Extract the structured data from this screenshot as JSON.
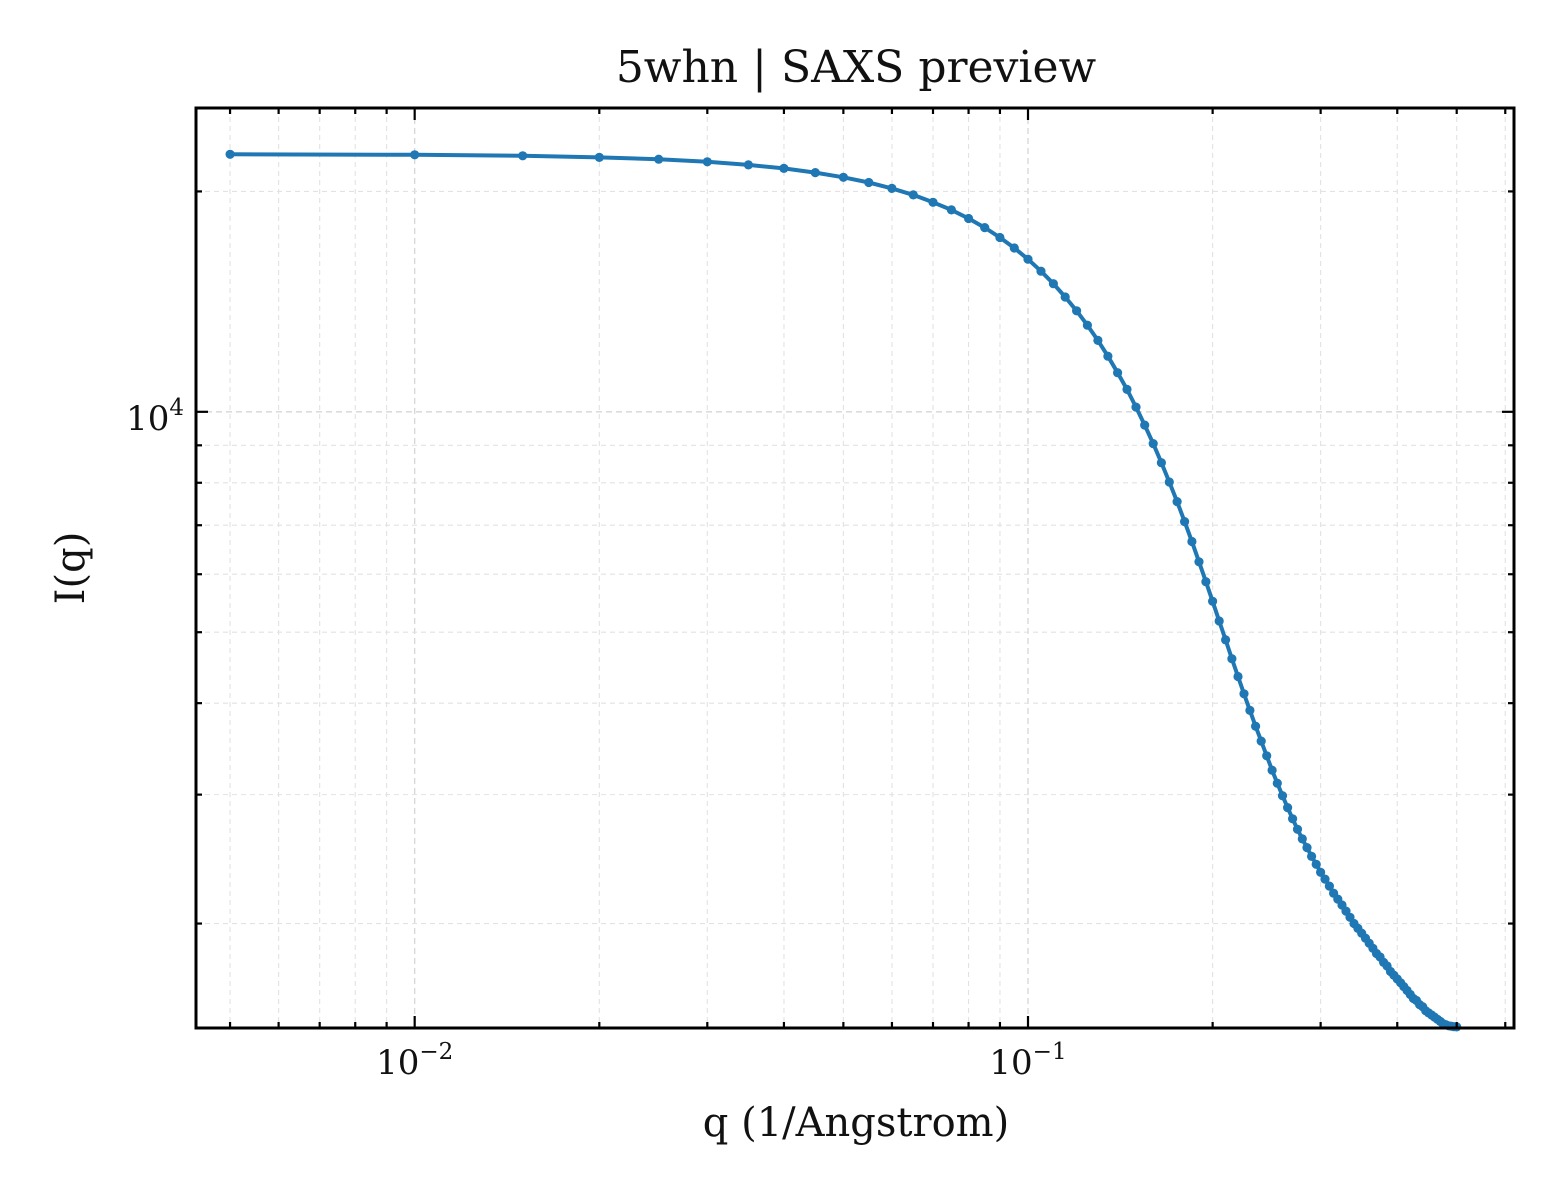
{
  "chart_data": {
    "type": "line",
    "title": "5whn | SAXS preview",
    "xlabel": "q (1/Angstrom)",
    "ylabel": "I(q)",
    "xscale": "log",
    "yscale": "log",
    "xlim": [
      0.0044,
      0.62
    ],
    "ylim": [
      1440,
      26000
    ],
    "x_ticks": [
      {
        "value": 0.01,
        "base": "10",
        "exp": "−2"
      },
      {
        "value": 0.1,
        "base": "10",
        "exp": "−1"
      }
    ],
    "y_ticks": [
      {
        "value": 10000,
        "base": "10",
        "exp": "4"
      }
    ],
    "grid": true,
    "markers": true,
    "series": [
      {
        "color": "#1f77b4",
        "x": [
          0.005,
          0.01,
          0.015,
          0.02,
          0.025,
          0.03,
          0.035,
          0.04,
          0.045,
          0.05,
          0.055,
          0.06,
          0.065,
          0.07,
          0.075,
          0.08,
          0.085,
          0.09,
          0.095,
          0.1,
          0.105,
          0.11,
          0.115,
          0.12,
          0.125,
          0.13,
          0.135,
          0.14,
          0.145,
          0.15,
          0.155,
          0.16,
          0.165,
          0.17,
          0.175,
          0.18,
          0.185,
          0.19,
          0.195,
          0.2,
          0.205,
          0.21,
          0.215,
          0.22,
          0.225,
          0.23,
          0.235,
          0.24,
          0.245,
          0.25,
          0.255,
          0.26,
          0.265,
          0.27,
          0.275,
          0.28,
          0.285,
          0.29,
          0.295,
          0.3,
          0.305,
          0.31,
          0.315,
          0.32,
          0.325,
          0.33,
          0.335,
          0.34,
          0.345,
          0.35,
          0.355,
          0.36,
          0.365,
          0.37,
          0.375,
          0.38,
          0.385,
          0.39,
          0.395,
          0.4,
          0.405,
          0.41,
          0.415,
          0.42,
          0.425,
          0.43,
          0.435,
          0.44,
          0.445,
          0.45,
          0.455,
          0.46,
          0.465,
          0.47,
          0.475,
          0.48,
          0.485,
          0.49,
          0.495,
          0.5
        ],
        "y": [
          22480,
          22440,
          22370,
          22260,
          22130,
          21950,
          21740,
          21500,
          21220,
          20910,
          20570,
          20190,
          19780,
          19330,
          18870,
          18370,
          17850,
          17300,
          16740,
          16160,
          15560,
          14960,
          14350,
          13740,
          13130,
          12520,
          11910,
          11310,
          10730,
          10150,
          9590,
          9050,
          8520,
          8020,
          7540,
          7080,
          6650,
          6240,
          5860,
          5510,
          5180,
          4880,
          4600,
          4350,
          4120,
          3910,
          3720,
          3550,
          3390,
          3240,
          3110,
          2990,
          2880,
          2780,
          2690,
          2610,
          2540,
          2470,
          2410,
          2350,
          2300,
          2250,
          2200,
          2160,
          2120,
          2080,
          2040,
          2000,
          1970,
          1940,
          1910,
          1880,
          1850,
          1820,
          1800,
          1770,
          1750,
          1720,
          1700,
          1680,
          1660,
          1640,
          1620,
          1600,
          1580,
          1570,
          1550,
          1540,
          1520,
          1510,
          1500,
          1490,
          1480,
          1470,
          1460,
          1455,
          1450,
          1448,
          1446,
          1445
        ]
      }
    ]
  }
}
